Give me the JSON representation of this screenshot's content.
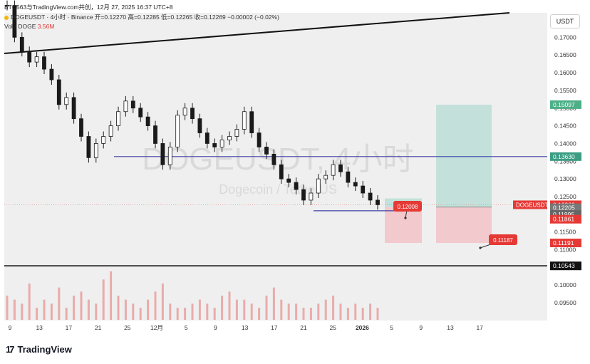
{
  "header": {
    "source": "BTC563与TradingView.com共创，12月 27, 2025 16:37 UTC+8",
    "symbol_line": "DOGEUSDT · 4小时 · Binance  开=0.12270  高=0.12285  低=0.12265  收=0.12269  −0.00002 (−0.02%)",
    "volume_label": "Vol · DOGE",
    "volume_value": "3.56M"
  },
  "quote_currency": "USDT",
  "watermark": {
    "title": "DOGEUSDT, 4小时",
    "subtitle": "Dogecoin / TetherUS"
  },
  "brand": "TradingView",
  "colors": {
    "background": "#efefef",
    "candle": "#1a1a1a",
    "horizontal_line": "#3f3fa8",
    "support_line": "#111111",
    "target_zone": "#c3e1da",
    "stop_zone": "#f2c9cd",
    "callout": "#e53935",
    "volume": "#e57373"
  },
  "chart_data": {
    "type": "line",
    "title": "DOGEUSDT, 4小时",
    "x_ticks": [
      "9",
      "13",
      "17",
      "21",
      "25",
      "12月",
      "5",
      "9",
      "13",
      "17",
      "21",
      "25",
      "2026",
      "5",
      "9",
      "13",
      "17"
    ],
    "y_ticks": [
      "0.17000",
      "0.16500",
      "0.16000",
      "0.15500",
      "0.15000",
      "0.14500",
      "0.14000",
      "0.13500",
      "0.13000",
      "0.12500",
      "0.12000",
      "0.11500",
      "0.11000",
      "0.10500",
      "0.10000",
      "0.09500"
    ],
    "ylim": [
      0.0928,
      0.1745
    ],
    "grid": false,
    "series": [
      {
        "values": [
          0.179,
          0.17,
          0.166,
          0.163,
          0.1645,
          0.161,
          0.158,
          0.151,
          0.153,
          0.147,
          0.142,
          0.136,
          0.14,
          0.142,
          0.145,
          0.149,
          0.152,
          0.15,
          0.1475,
          0.145,
          0.14,
          0.134,
          0.139,
          0.148,
          0.15,
          0.147,
          0.143,
          0.14,
          0.139,
          0.141,
          0.142,
          0.144,
          0.149,
          0.143,
          0.139,
          0.137,
          0.134,
          0.13,
          0.129,
          0.127,
          0.124,
          0.126,
          0.13,
          0.131,
          0.134,
          0.132,
          0.129,
          0.128,
          0.126,
          0.124,
          0.1227
        ]
      }
    ],
    "levels": [
      {
        "value": 0.1363,
        "label": "0.13630"
      },
      {
        "value": 0.10543,
        "label": "0.10543"
      }
    ],
    "trendline": [
      {
        "date": "11-09",
        "value": 0.1696
      },
      {
        "date": "01-04",
        "value": 0.1765
      }
    ],
    "position": {
      "entry": 0.12205,
      "target": 0.15097,
      "stop": 0.11191,
      "entry_label": "0.12205",
      "target_label": "0.15097",
      "stop_label": "0.11191"
    },
    "callouts": [
      "0.12008",
      "0.11187"
    ],
    "price_badges": [
      {
        "label": "DOGEUSDT",
        "price": "0.12269",
        "countdown": "03:22:26"
      },
      {
        "price": "0.11995"
      },
      {
        "price": "0.11861"
      }
    ],
    "volume": [
      6,
      5,
      4,
      9,
      3,
      5,
      4,
      8,
      3,
      6,
      7,
      5,
      4,
      10,
      12,
      6,
      5,
      4,
      3,
      5,
      7,
      9,
      4,
      3,
      3,
      4,
      5,
      4,
      3,
      6,
      7,
      5,
      5,
      4,
      3,
      6,
      8,
      5,
      4,
      4,
      3,
      3,
      4,
      5,
      6,
      4,
      3,
      4,
      3,
      4,
      3
    ]
  }
}
